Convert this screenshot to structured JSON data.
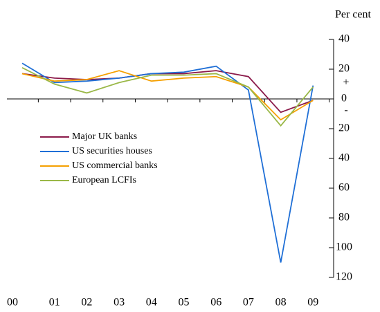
{
  "chart_data": {
    "type": "line",
    "y_axis_label": "Per cent",
    "annotations": [
      "+",
      "-"
    ],
    "categories": [
      "00",
      "01",
      "02",
      "03",
      "04",
      "05",
      "06",
      "07",
      "08",
      "09"
    ],
    "series": [
      {
        "name": "Major UK banks",
        "color": "#8b1a4a",
        "values": [
          17,
          14,
          13,
          14,
          17,
          17,
          19,
          15,
          -9,
          -1
        ]
      },
      {
        "name": "US securities houses",
        "color": "#1f6fd6",
        "values": [
          24,
          11,
          12,
          14,
          17,
          18,
          22,
          6,
          -110,
          9
        ]
      },
      {
        "name": "US commercial banks",
        "color": "#f5a000",
        "values": [
          17,
          12,
          13,
          19,
          12,
          14,
          15,
          8,
          -14,
          -1
        ]
      },
      {
        "name": "European LCFIs",
        "color": "#9ab847",
        "values": [
          21,
          10,
          4,
          11,
          16,
          16,
          17,
          8,
          -18,
          8
        ]
      }
    ],
    "ylim": [
      -120,
      40
    ],
    "yticks": [
      40,
      20,
      0,
      {
        "value": -20,
        "label": "20"
      },
      {
        "value": -40,
        "label": "40"
      },
      {
        "value": -60,
        "label": "60"
      },
      {
        "value": -80,
        "label": "80"
      },
      {
        "value": -100,
        "label": "100"
      },
      {
        "value": -120,
        "label": "120"
      }
    ]
  }
}
